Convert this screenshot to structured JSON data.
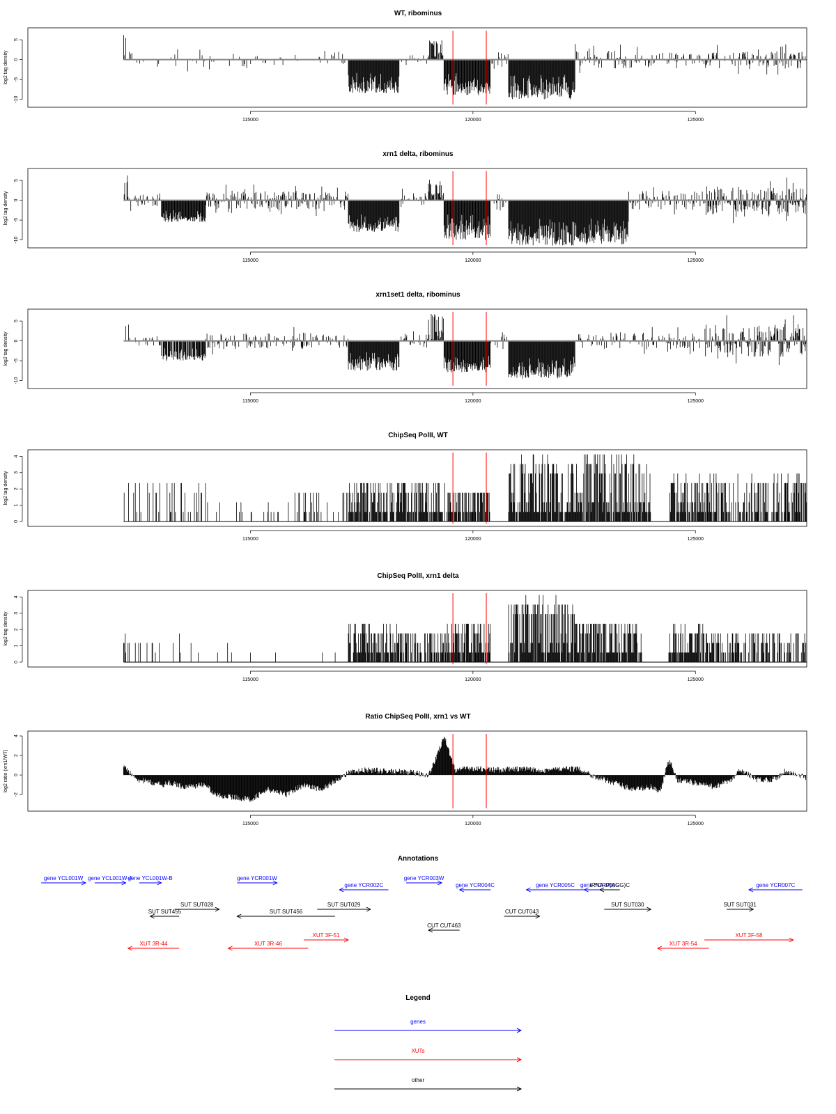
{
  "chart_data": [
    {
      "type": "bar",
      "title": "WT, ribominus",
      "ylabel": "log2 tag density",
      "xlim": [
        110000,
        127500
      ],
      "ylim": [
        -12,
        8
      ],
      "yticks": [
        -10,
        -5,
        0,
        5
      ],
      "xticks": [
        115000,
        120000,
        125000
      ],
      "baseline": 0,
      "markers": [
        119550,
        120300
      ],
      "segments": [
        {
          "x": [
            112150,
            112300
          ],
          "range": [
            0,
            6.5
          ],
          "density": 0.5,
          "signed": 1
        },
        {
          "x": [
            112300,
            117200
          ],
          "range": [
            0,
            3
          ],
          "density": 0.2,
          "signed": 0
        },
        {
          "x": [
            117200,
            118350
          ],
          "range": [
            -8.5,
            -3
          ],
          "density": 1.0,
          "signed": -1
        },
        {
          "x": [
            118350,
            119000
          ],
          "range": [
            0,
            2
          ],
          "density": 0.3,
          "signed": 0
        },
        {
          "x": [
            119000,
            119350
          ],
          "range": [
            0,
            5
          ],
          "density": 0.9,
          "signed": 1
        },
        {
          "x": [
            119350,
            120400
          ],
          "range": [
            -9,
            -3
          ],
          "density": 1.0,
          "signed": -1
        },
        {
          "x": [
            120400,
            120800
          ],
          "range": [
            0,
            4
          ],
          "density": 0.3,
          "signed": 0
        },
        {
          "x": [
            120800,
            122300
          ],
          "range": [
            -10,
            -3
          ],
          "density": 1.0,
          "signed": -1
        },
        {
          "x": [
            122300,
            124000
          ],
          "range": [
            0,
            4
          ],
          "density": 0.5,
          "signed": 0
        },
        {
          "x": [
            124000,
            125200
          ],
          "range": [
            0,
            3
          ],
          "density": 0.4,
          "signed": 0
        },
        {
          "x": [
            125200,
            127500
          ],
          "range": [
            0,
            4
          ],
          "density": 0.6,
          "signed": 0
        }
      ]
    },
    {
      "type": "bar",
      "title": "xrn1 delta, ribominus",
      "ylabel": "log2 tag density",
      "xlim": [
        110000,
        127500
      ],
      "ylim": [
        -12,
        8
      ],
      "yticks": [
        -10,
        -5,
        0,
        5
      ],
      "xticks": [
        115000,
        120000,
        125000
      ],
      "baseline": 0,
      "markers": [
        119550,
        120300
      ],
      "segments": [
        {
          "x": [
            112150,
            112300
          ],
          "range": [
            0,
            6.5
          ],
          "density": 0.5,
          "signed": 1
        },
        {
          "x": [
            112300,
            113000
          ],
          "range": [
            0,
            3
          ],
          "density": 0.4,
          "signed": 0
        },
        {
          "x": [
            113000,
            114000
          ],
          "range": [
            -5.5,
            -2
          ],
          "density": 1.0,
          "signed": -1
        },
        {
          "x": [
            114000,
            117200
          ],
          "range": [
            0,
            4
          ],
          "density": 0.7,
          "signed": 0
        },
        {
          "x": [
            117200,
            118350
          ],
          "range": [
            -8,
            -3
          ],
          "density": 1.0,
          "signed": -1
        },
        {
          "x": [
            118350,
            119000
          ],
          "range": [
            0,
            3
          ],
          "density": 0.4,
          "signed": 0
        },
        {
          "x": [
            119000,
            119350
          ],
          "range": [
            0,
            5.5
          ],
          "density": 0.9,
          "signed": 1
        },
        {
          "x": [
            119350,
            120400
          ],
          "range": [
            -10,
            -3
          ],
          "density": 1.0,
          "signed": -1
        },
        {
          "x": [
            120400,
            120800
          ],
          "range": [
            0,
            4
          ],
          "density": 0.4,
          "signed": 0
        },
        {
          "x": [
            120800,
            123500
          ],
          "range": [
            -11.5,
            -4
          ],
          "density": 1.0,
          "signed": -1
        },
        {
          "x": [
            123500,
            125200
          ],
          "range": [
            0,
            4
          ],
          "density": 0.6,
          "signed": 0
        },
        {
          "x": [
            125200,
            127500
          ],
          "range": [
            0,
            6
          ],
          "density": 0.9,
          "signed": 0
        }
      ]
    },
    {
      "type": "bar",
      "title": "xrn1set1 delta, ribominus",
      "ylabel": "log2 tag density",
      "xlim": [
        110000,
        127500
      ],
      "ylim": [
        -12,
        8
      ],
      "yticks": [
        -10,
        -5,
        0,
        5
      ],
      "xticks": [
        115000,
        120000,
        125000
      ],
      "baseline": 0,
      "markers": [
        119550,
        120300
      ],
      "segments": [
        {
          "x": [
            112150,
            112300
          ],
          "range": [
            0,
            5
          ],
          "density": 0.5,
          "signed": 1
        },
        {
          "x": [
            112300,
            113000
          ],
          "range": [
            0,
            2.5
          ],
          "density": 0.3,
          "signed": 0
        },
        {
          "x": [
            113000,
            114000
          ],
          "range": [
            -5,
            -1.5
          ],
          "density": 0.8,
          "signed": -1
        },
        {
          "x": [
            114000,
            117200
          ],
          "range": [
            0,
            3.5
          ],
          "density": 0.5,
          "signed": 0
        },
        {
          "x": [
            117200,
            118350
          ],
          "range": [
            -7.5,
            -2.5
          ],
          "density": 1.0,
          "signed": -1
        },
        {
          "x": [
            118350,
            119000
          ],
          "range": [
            0,
            3
          ],
          "density": 0.4,
          "signed": 0
        },
        {
          "x": [
            119000,
            119350
          ],
          "range": [
            0,
            7
          ],
          "density": 0.9,
          "signed": 1
        },
        {
          "x": [
            119350,
            120400
          ],
          "range": [
            -8,
            -3
          ],
          "density": 1.0,
          "signed": -1
        },
        {
          "x": [
            120400,
            120800
          ],
          "range": [
            0,
            3.5
          ],
          "density": 0.4,
          "signed": 0
        },
        {
          "x": [
            120800,
            122300
          ],
          "range": [
            -9.5,
            -3
          ],
          "density": 1.0,
          "signed": -1
        },
        {
          "x": [
            122300,
            125200
          ],
          "range": [
            0,
            3.5
          ],
          "density": 0.5,
          "signed": 0
        },
        {
          "x": [
            125200,
            127500
          ],
          "range": [
            0,
            7
          ],
          "density": 0.9,
          "signed": 0
        }
      ]
    },
    {
      "type": "bar",
      "title": "ChipSeq PolII, WT",
      "ylabel": "log2 tag density",
      "xlim": [
        110000,
        127500
      ],
      "ylim": [
        -0.3,
        4.4
      ],
      "yticks": [
        0,
        1,
        2,
        3,
        4
      ],
      "xticks": [
        115000,
        120000,
        125000
      ],
      "baseline": 0,
      "markers": [
        119550,
        120300
      ],
      "segments": [
        {
          "x": [
            112150,
            114000
          ],
          "range": [
            0,
            2.5
          ],
          "density": 0.25,
          "signed": 1
        },
        {
          "x": [
            114000,
            116000
          ],
          "range": [
            0,
            1
          ],
          "density": 0.2,
          "signed": 1
        },
        {
          "x": [
            116000,
            117200
          ],
          "range": [
            0,
            2
          ],
          "density": 0.4,
          "signed": 1
        },
        {
          "x": [
            117200,
            119400
          ],
          "range": [
            0,
            2.5
          ],
          "density": 0.9,
          "signed": 1
        },
        {
          "x": [
            119400,
            120400
          ],
          "range": [
            0,
            2
          ],
          "density": 1.0,
          "signed": 1
        },
        {
          "x": [
            120800,
            122300
          ],
          "range": [
            0,
            4
          ],
          "density": 1.0,
          "signed": 1
        },
        {
          "x": [
            122300,
            124000
          ],
          "range": [
            0,
            4.2
          ],
          "density": 1.0,
          "signed": 1
        },
        {
          "x": [
            124400,
            125200
          ],
          "range": [
            0,
            2.8
          ],
          "density": 1.0,
          "signed": 1
        },
        {
          "x": [
            125200,
            127500
          ],
          "range": [
            0,
            2.8
          ],
          "density": 0.8,
          "signed": 1
        }
      ]
    },
    {
      "type": "bar",
      "title": "ChipSeq PolII, xrn1 delta",
      "ylabel": "log2 tag density",
      "xlim": [
        110000,
        127500
      ],
      "ylim": [
        -0.3,
        4.4
      ],
      "yticks": [
        0,
        1,
        2,
        3,
        4
      ],
      "xticks": [
        115000,
        120000,
        125000
      ],
      "baseline": 0,
      "markers": [
        119550,
        120300
      ],
      "segments": [
        {
          "x": [
            112150,
            114000
          ],
          "range": [
            0,
            1.5
          ],
          "density": 0.15,
          "signed": 1
        },
        {
          "x": [
            114000,
            117200
          ],
          "range": [
            0,
            1
          ],
          "density": 0.05,
          "signed": 1
        },
        {
          "x": [
            117200,
            118300
          ],
          "range": [
            0,
            2.5
          ],
          "density": 1.0,
          "signed": 1
        },
        {
          "x": [
            118300,
            119400
          ],
          "range": [
            0,
            2
          ],
          "density": 0.8,
          "signed": 1
        },
        {
          "x": [
            119400,
            120400
          ],
          "range": [
            0,
            2.5
          ],
          "density": 1.0,
          "signed": 1
        },
        {
          "x": [
            120800,
            122300
          ],
          "range": [
            0,
            3.9
          ],
          "density": 1.0,
          "signed": 1
        },
        {
          "x": [
            122300,
            123800
          ],
          "range": [
            0,
            2.5
          ],
          "density": 1.0,
          "signed": 1
        },
        {
          "x": [
            124400,
            125200
          ],
          "range": [
            0,
            2.2
          ],
          "density": 1.0,
          "signed": 1
        },
        {
          "x": [
            125200,
            127500
          ],
          "range": [
            0,
            1.7
          ],
          "density": 0.7,
          "signed": 1
        }
      ]
    },
    {
      "type": "area",
      "title": "Ratio ChipSeq PolII, xrn1 vs WT",
      "ylabel": "log2 ratio (xrn1/WT)",
      "xlim": [
        110000,
        127500
      ],
      "ylim": [
        -3.7,
        4.5
      ],
      "yticks": [
        -2,
        0,
        2,
        4
      ],
      "xticks": [
        115000,
        120000,
        125000
      ],
      "baseline": 0,
      "markers": [
        119550,
        120300
      ],
      "x": [
        112150,
        112500,
        113000,
        113200,
        113500,
        114000,
        114200,
        114500,
        115000,
        115400,
        115800,
        116200,
        116600,
        117000,
        117200,
        117600,
        118000,
        118500,
        119000,
        119200,
        119350,
        119600,
        120000,
        120500,
        121000,
        121500,
        122000,
        122400,
        122800,
        123200,
        123600,
        124000,
        124200,
        124400,
        124600,
        125000,
        125400,
        125800,
        126000,
        126400,
        126800,
        127000,
        127500
      ],
      "values": [
        0.8,
        -0.5,
        -1.0,
        -0.8,
        -1.2,
        -1.0,
        -2.0,
        -2.2,
        -2.5,
        -1.5,
        -2.0,
        -1.0,
        -1.5,
        -0.3,
        0.2,
        0.5,
        0.4,
        0.3,
        0.0,
        2.0,
        4.0,
        0.5,
        0.7,
        0.5,
        0.6,
        0.5,
        0.6,
        0.6,
        -0.3,
        -0.8,
        -1.5,
        -1.2,
        -1.8,
        1.5,
        -0.5,
        -0.8,
        -1.2,
        -0.6,
        0.5,
        -0.5,
        -0.4,
        0.4,
        -0.3
      ]
    },
    {
      "type": "annotation",
      "title": "Annotations",
      "xlim": [
        110000,
        127500
      ],
      "features": [
        {
          "label": "gene YCL001W",
          "x1": 110300,
          "x2": 111300,
          "row": 0,
          "dir": 1,
          "color": "#0000ff"
        },
        {
          "label": "gene YCL001W-A",
          "x1": 111500,
          "x2": 112200,
          "row": 0,
          "dir": 1,
          "color": "#0000ff"
        },
        {
          "label": "gene YCL001W-B",
          "x1": 112500,
          "x2": 113000,
          "row": 0,
          "dir": 1,
          "color": "#0000ff"
        },
        {
          "label": "gene YCR001W",
          "x1": 114700,
          "x2": 115600,
          "row": 0,
          "dir": 1,
          "color": "#0000ff"
        },
        {
          "label": "gene YCR002C",
          "x1": 117000,
          "x2": 118100,
          "row": 1,
          "dir": -1,
          "color": "#0000ff"
        },
        {
          "label": "gene YCR003W",
          "x1": 118500,
          "x2": 119300,
          "row": 0,
          "dir": 1,
          "color": "#0000ff"
        },
        {
          "label": "gene YCR004C",
          "x1": 119700,
          "x2": 120400,
          "row": 1,
          "dir": -1,
          "color": "#0000ff"
        },
        {
          "label": "gene YCR005C",
          "x1": 121200,
          "x2": 122500,
          "row": 1,
          "dir": -1,
          "color": "#0000ff"
        },
        {
          "label": "gene YCR006C",
          "x1": 122500,
          "x2": 123200,
          "row": 1,
          "dir": -1,
          "color": "#0000ff"
        },
        {
          "label": "gene YCR007C",
          "x1": 126200,
          "x2": 127400,
          "row": 1,
          "dir": -1,
          "color": "#0000ff"
        },
        {
          "label": "SUT SUT455",
          "x1": 112750,
          "x2": 113400,
          "row": 3,
          "dir": -1,
          "color": "#000000"
        },
        {
          "label": "SUT SUT028",
          "x1": 113300,
          "x2": 114300,
          "row": 2,
          "dir": 1,
          "color": "#000000"
        },
        {
          "label": "SUT SUT456",
          "x1": 114700,
          "x2": 116900,
          "row": 3,
          "dir": -1,
          "color": "#000000"
        },
        {
          "label": "SUT SUT029",
          "x1": 116500,
          "x2": 117700,
          "row": 2,
          "dir": 1,
          "color": "#000000"
        },
        {
          "label": "tRNA tP(AGG)C",
          "x1": 122850,
          "x2": 123300,
          "row": 1,
          "dir": -1,
          "color": "#000000"
        },
        {
          "label": "SUT SUT030",
          "x1": 122950,
          "x2": 124000,
          "row": 2,
          "dir": 1,
          "color": "#000000"
        },
        {
          "label": "SUT SUT031",
          "x1": 125700,
          "x2": 126300,
          "row": 2,
          "dir": 1,
          "color": "#000000"
        },
        {
          "label": "CUT CUT463",
          "x1": 119000,
          "x2": 119700,
          "row": 4,
          "dir": -1,
          "color": "#000000"
        },
        {
          "label": "CUT CUT043",
          "x1": 120700,
          "x2": 121500,
          "row": 3,
          "dir": 1,
          "color": "#000000"
        },
        {
          "label": "XUT 3R-44",
          "x1": 112250,
          "x2": 113400,
          "row": 6,
          "dir": -1,
          "color": "#ff0000"
        },
        {
          "label": "XUT 3R-46",
          "x1": 114500,
          "x2": 116300,
          "row": 6,
          "dir": -1,
          "color": "#ff0000"
        },
        {
          "label": "XUT 3F-51",
          "x1": 116200,
          "x2": 117200,
          "row": 5,
          "dir": 1,
          "color": "#ff0000"
        },
        {
          "label": "XUT 3R-54",
          "x1": 124150,
          "x2": 125300,
          "row": 6,
          "dir": -1,
          "color": "#ff0000"
        },
        {
          "label": "XUT 3F-58",
          "x1": 125200,
          "x2": 127200,
          "row": 5,
          "dir": 1,
          "color": "#ff0000"
        }
      ]
    }
  ],
  "legend": {
    "title": "Legend",
    "items": [
      {
        "label": "genes",
        "color": "#0000ff"
      },
      {
        "label": "XUTs",
        "color": "#ff0000"
      },
      {
        "label": "other",
        "color": "#000000"
      }
    ]
  }
}
